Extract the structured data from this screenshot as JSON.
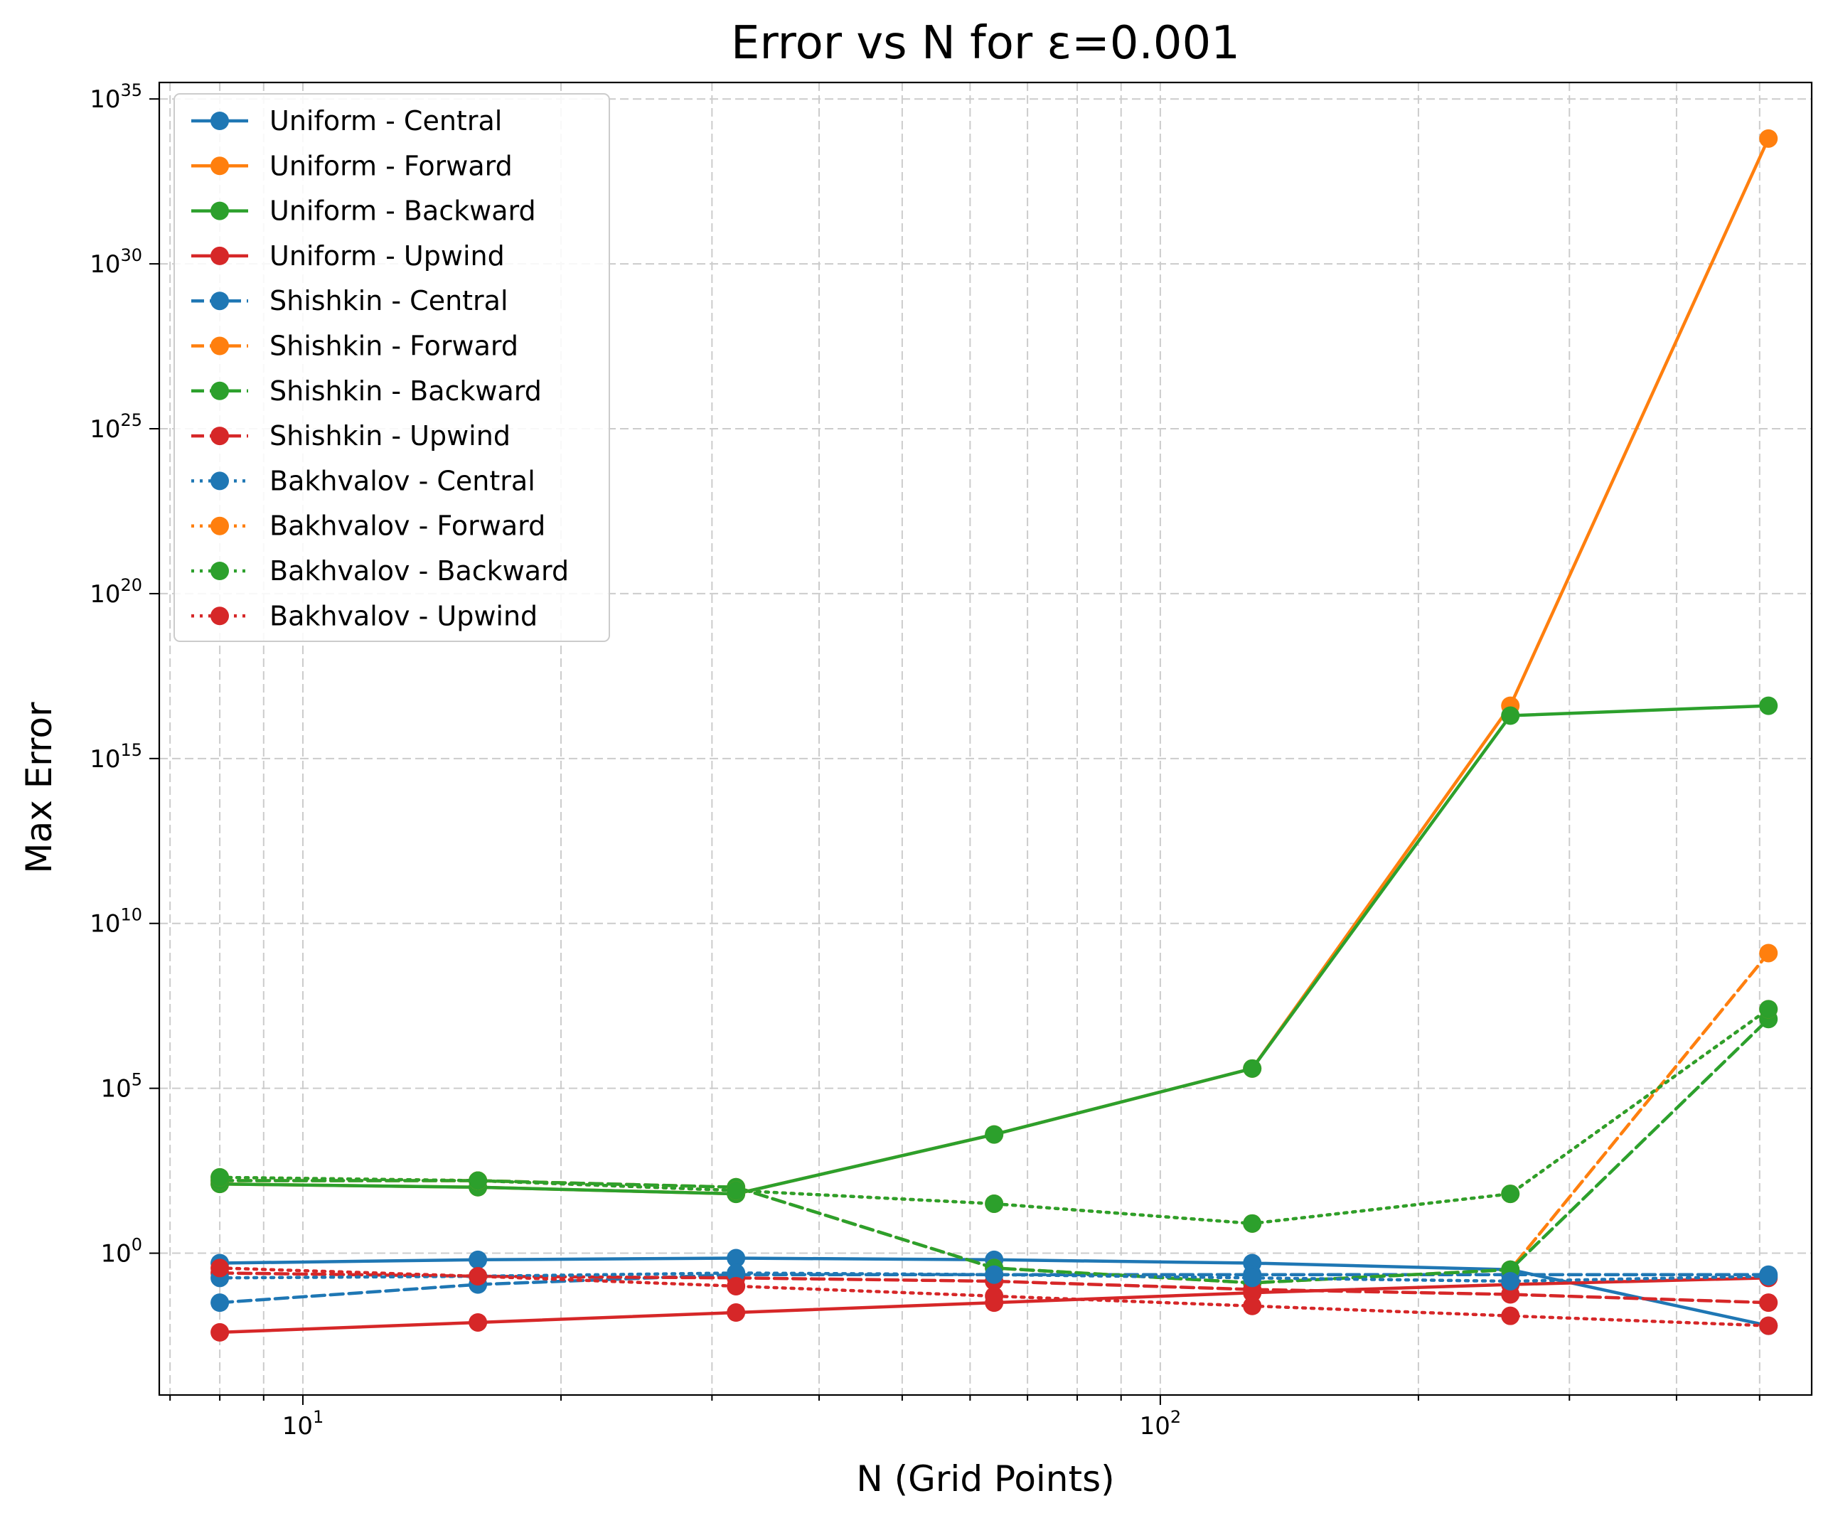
{
  "chart_data": {
    "type": "line",
    "title": "Error vs N for ε=0.001",
    "xlabel": "N (Grid Points)",
    "ylabel": "Max Error",
    "xscale": "log",
    "yscale": "log",
    "xlim": [
      6.8,
      575
    ],
    "ylim_exponent": [
      -4.3,
      35.5
    ],
    "grid": true,
    "legend_position": "upper left",
    "x_ticks": [
      {
        "base": "10",
        "exp": "1",
        "value": 10
      },
      {
        "base": "10",
        "exp": "2",
        "value": 100
      }
    ],
    "y_ticks": [
      {
        "base": "10",
        "exp": "0",
        "value": 0
      },
      {
        "base": "10",
        "exp": "5",
        "value": 5
      },
      {
        "base": "10",
        "exp": "10",
        "value": 10
      },
      {
        "base": "10",
        "exp": "15",
        "value": 15
      },
      {
        "base": "10",
        "exp": "20",
        "value": 20
      },
      {
        "base": "10",
        "exp": "25",
        "value": 25
      },
      {
        "base": "10",
        "exp": "30",
        "value": 30
      },
      {
        "base": "10",
        "exp": "35",
        "value": 35
      }
    ],
    "x": [
      8,
      16,
      32,
      64,
      128,
      256,
      512
    ],
    "y_value_note": "values are log10(Max Error)",
    "series": [
      {
        "name": "Uniform - Central",
        "color": "#1f77b4",
        "linestyle": "solid",
        "log10_values": [
          -0.3,
          -0.2,
          -0.15,
          -0.2,
          -0.3,
          -0.5,
          -2.2
        ]
      },
      {
        "name": "Uniform - Forward",
        "color": "#ff7f0e",
        "linestyle": "solid",
        "log10_values": [
          2.1,
          2.0,
          1.8,
          3.6,
          5.6,
          16.6,
          33.8
        ]
      },
      {
        "name": "Uniform - Backward",
        "color": "#2ca02c",
        "linestyle": "solid",
        "log10_values": [
          2.1,
          2.0,
          1.8,
          3.6,
          5.6,
          16.3,
          16.6
        ]
      },
      {
        "name": "Uniform - Upwind",
        "color": "#d62728",
        "linestyle": "solid",
        "log10_values": [
          -2.4,
          -2.1,
          -1.8,
          -1.5,
          -1.2,
          -0.95,
          -0.75
        ]
      },
      {
        "name": "Shishkin - Central",
        "color": "#1f77b4",
        "linestyle": "dashed",
        "log10_values": [
          -1.5,
          -0.95,
          -0.65,
          -0.65,
          -0.65,
          -0.65,
          -0.65
        ]
      },
      {
        "name": "Shishkin - Forward",
        "color": "#ff7f0e",
        "linestyle": "dashed",
        "log10_values": [
          2.2,
          2.2,
          2.0,
          -0.45,
          -0.9,
          -0.5,
          9.1
        ]
      },
      {
        "name": "Shishkin - Backward",
        "color": "#2ca02c",
        "linestyle": "dashed",
        "log10_values": [
          2.2,
          2.2,
          2.0,
          -0.45,
          -0.9,
          -0.5,
          7.1
        ]
      },
      {
        "name": "Shishkin - Upwind",
        "color": "#d62728",
        "linestyle": "dashed",
        "log10_values": [
          -0.6,
          -0.7,
          -0.75,
          -0.85,
          -1.1,
          -1.25,
          -1.5
        ]
      },
      {
        "name": "Bakhvalov - Central",
        "color": "#1f77b4",
        "linestyle": "dotted",
        "log10_values": [
          -0.75,
          -0.7,
          -0.6,
          -0.65,
          -0.75,
          -0.85,
          -0.7
        ]
      },
      {
        "name": "Bakhvalov - Forward",
        "color": "#ff7f0e",
        "linestyle": "dotted",
        "log10_values": [
          2.3,
          2.2,
          1.9,
          1.5,
          0.9,
          1.8,
          7.4
        ]
      },
      {
        "name": "Bakhvalov - Backward",
        "color": "#2ca02c",
        "linestyle": "dotted",
        "log10_values": [
          2.3,
          2.2,
          1.9,
          1.5,
          0.9,
          1.8,
          7.4
        ]
      },
      {
        "name": "Bakhvalov - Upwind",
        "color": "#d62728",
        "linestyle": "dotted",
        "log10_values": [
          -0.45,
          -0.7,
          -1.0,
          -1.3,
          -1.6,
          -1.9,
          -2.2
        ]
      }
    ]
  }
}
